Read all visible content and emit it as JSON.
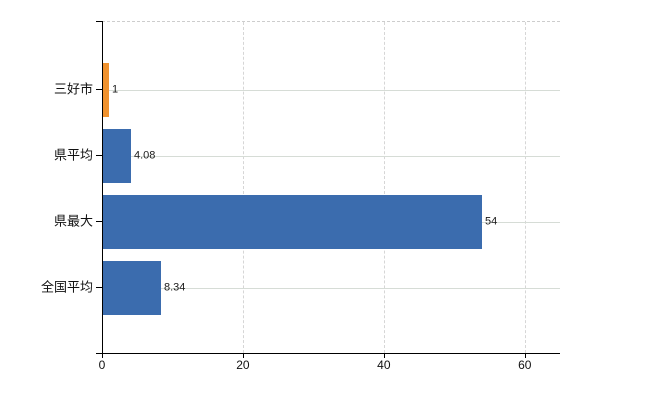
{
  "chart_data": {
    "type": "bar",
    "orientation": "horizontal",
    "title": "",
    "xlabel": "",
    "ylabel": "",
    "categories": [
      "三好市",
      "県平均",
      "県最大",
      "全国平均"
    ],
    "values": [
      1,
      4.08,
      54,
      8.34
    ],
    "value_labels": [
      "1",
      "4.08",
      "54",
      "8.34"
    ],
    "bar_colors": [
      "#F0922E",
      "#3B6CAE",
      "#3B6CAE",
      "#3B6CAE"
    ],
    "highlighted_category": "三好市",
    "x_ticks": [
      0,
      20,
      40,
      60
    ],
    "x_tick_labels": [
      "0",
      "20",
      "40",
      "60"
    ],
    "xlim": [
      0,
      65
    ],
    "grid": true,
    "legend": null
  },
  "colors": {
    "bar_default": "#3B6CAE",
    "bar_highlight": "#F0922E",
    "grid_line": "#d6d6d6",
    "axis_line": "#000000",
    "background": "#ffffff"
  }
}
